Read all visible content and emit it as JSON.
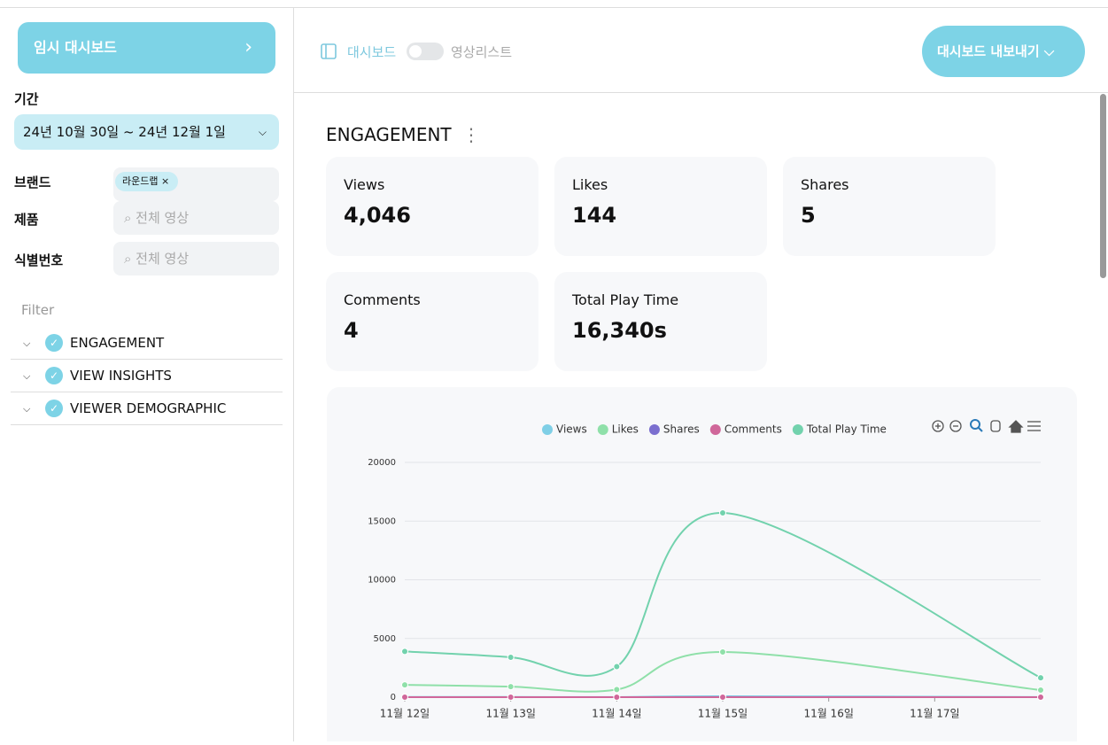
{
  "sidebar": {
    "dashboard_button": "임시 대시보드",
    "period_label": "기간",
    "period_value": "24년 10월 30일 ~ 24년 12월 1일",
    "brand_label": "브랜드",
    "brand_tag": "라운드랩",
    "product_label": "제품",
    "product_placeholder": "전체 영상",
    "id_label": "식별번호",
    "id_placeholder": "전체 영상",
    "filter_title": "Filter",
    "filters": [
      "ENGAGEMENT",
      "VIEW INSIGHTS",
      "VIEWER DEMOGRAPHIC"
    ]
  },
  "header": {
    "toggle_left": "대시보드",
    "toggle_right": "영상리스트",
    "export_button": "대시보드 내보내기"
  },
  "section_title": "ENGAGEMENT",
  "cards": [
    {
      "label": "Views",
      "value": "4,046"
    },
    {
      "label": "Likes",
      "value": "144"
    },
    {
      "label": "Shares",
      "value": "5"
    },
    {
      "label": "Comments",
      "value": "4"
    },
    {
      "label": "Total Play Time",
      "value": "16,340s"
    }
  ],
  "chart_data": {
    "type": "line",
    "x": [
      12,
      13,
      14,
      15,
      18
    ],
    "xlim": [
      12,
      18
    ],
    "xticks": [
      {
        "value": 12,
        "label": "11월 12일"
      },
      {
        "value": 13,
        "label": "11월 13일"
      },
      {
        "value": 14,
        "label": "11월 14일"
      },
      {
        "value": 15,
        "label": "11월 15일"
      },
      {
        "value": 16,
        "label": "11월 16일"
      },
      {
        "value": 17,
        "label": "11월 17일"
      }
    ],
    "ylim": [
      0,
      20000
    ],
    "yticks": [
      0,
      5000,
      10000,
      15000,
      20000
    ],
    "grid": true,
    "legend": "top",
    "series": [
      {
        "name": "Views",
        "color": "#7fcfe6",
        "values": [
          20,
          15,
          10,
          80,
          10
        ]
      },
      {
        "name": "Likes",
        "color": "#8fe0a9",
        "values": [
          1050,
          900,
          650,
          3850,
          600
        ]
      },
      {
        "name": "Shares",
        "color": "#7b6fcf",
        "values": [
          0,
          0,
          0,
          5,
          0
        ]
      },
      {
        "name": "Comments",
        "color": "#d0679a",
        "values": [
          0,
          0,
          0,
          4,
          0
        ]
      },
      {
        "name": "Total Play Time",
        "color": "#72d2ad",
        "values": [
          3900,
          3400,
          2600,
          15700,
          1650
        ]
      }
    ]
  }
}
